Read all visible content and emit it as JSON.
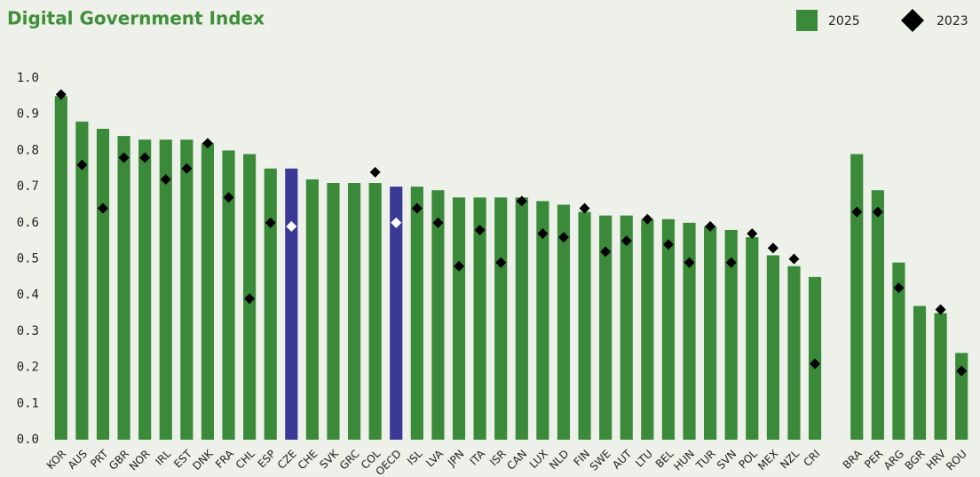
{
  "chart_data": {
    "type": "bar",
    "title": "Digital Government Index",
    "categories": [
      "KOR",
      "AUS",
      "PRT",
      "GBR",
      "NOR",
      "IRL",
      "EST",
      "DNK",
      "FRA",
      "CHL",
      "ESP",
      "CZE",
      "CHE",
      "SVK",
      "GRC",
      "COL",
      "OECD",
      "ISL",
      "LVA",
      "JPN",
      "ITA",
      "ISR",
      "CAN",
      "LUX",
      "NLD",
      "FIN",
      "SWE",
      "AUT",
      "LTU",
      "BEL",
      "HUN",
      "TUR",
      "SVN",
      "POL",
      "MEX",
      "NZL",
      "CRI",
      null,
      "BRA",
      "PER",
      "ARG",
      "BGR",
      "HRV",
      "ROU"
    ],
    "series": [
      {
        "name": "2025",
        "color": "#3a8a3a",
        "highlight_color": "#3a3a96",
        "highlight": [
          11,
          16
        ],
        "values": [
          0.95,
          0.88,
          0.86,
          0.84,
          0.83,
          0.83,
          0.83,
          0.82,
          0.8,
          0.79,
          0.75,
          0.75,
          0.72,
          0.71,
          0.71,
          0.71,
          0.7,
          0.7,
          0.69,
          0.67,
          0.67,
          0.67,
          0.67,
          0.66,
          0.65,
          0.63,
          0.62,
          0.62,
          0.61,
          0.61,
          0.6,
          0.59,
          0.58,
          0.56,
          0.51,
          0.48,
          0.45,
          null,
          0.79,
          0.69,
          0.49,
          0.37,
          0.35,
          0.24
        ]
      },
      {
        "name": "2023",
        "color": "#000000",
        "highlight_color": "#ffffff",
        "highlight": [
          11,
          16
        ],
        "values": [
          0.955,
          0.76,
          0.64,
          0.78,
          0.78,
          0.72,
          0.75,
          0.82,
          0.67,
          0.39,
          0.6,
          0.59,
          null,
          null,
          null,
          0.74,
          0.6,
          0.64,
          0.6,
          0.48,
          0.58,
          0.49,
          0.66,
          0.57,
          0.56,
          0.64,
          0.52,
          0.55,
          0.61,
          0.54,
          0.49,
          0.59,
          0.49,
          0.57,
          0.53,
          0.5,
          0.21,
          null,
          0.63,
          0.63,
          0.42,
          null,
          0.36,
          0.19
        ]
      }
    ],
    "ylim": [
      0,
      1.0
    ],
    "yticks": [
      {
        "value": 0,
        "label": "0.0"
      },
      {
        "value": 0.1,
        "label": "0.1"
      },
      {
        "value": 0.2,
        "label": "0.2"
      },
      {
        "value": 0.3,
        "label": "0.3"
      },
      {
        "value": 0.4,
        "label": "0.4"
      },
      {
        "value": 0.5,
        "label": "0.5"
      },
      {
        "value": 0.6,
        "label": "0.6"
      },
      {
        "value": 0.7,
        "label": "0.7"
      },
      {
        "value": 0.8,
        "label": "0.8"
      },
      {
        "value": 0.9,
        "label": "0.9"
      },
      {
        "value": 1.0,
        "label": "1.0"
      }
    ],
    "legend": "top-right"
  }
}
